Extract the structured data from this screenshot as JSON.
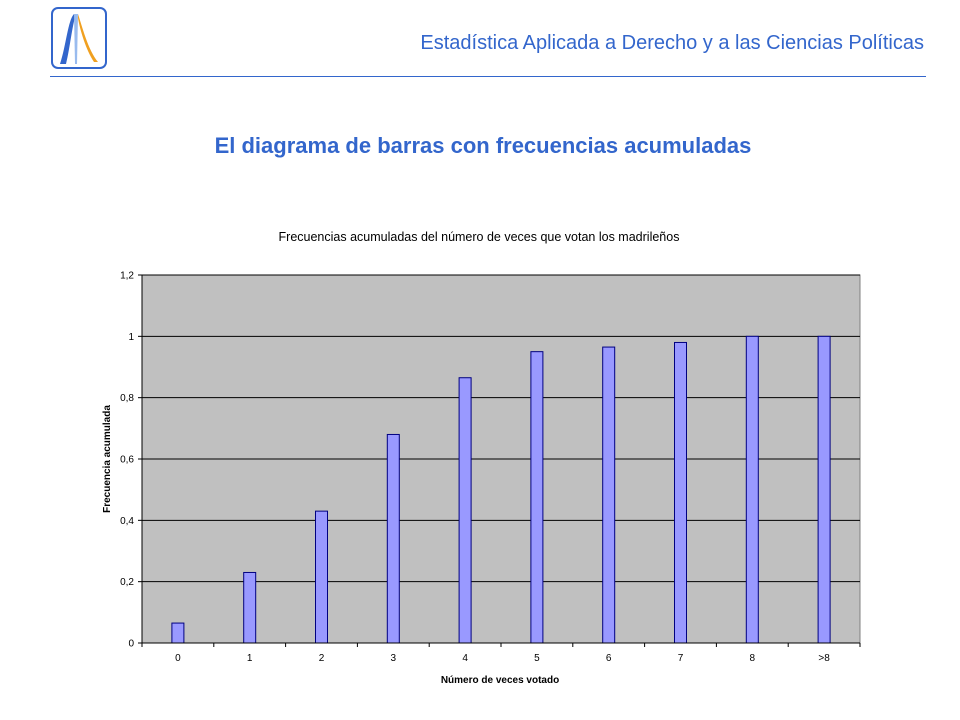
{
  "header": {
    "title": "Estadística Aplicada a Derecho y a las Ciencias Políticas"
  },
  "slide": {
    "title": "El diagrama de barras con frecuencias acumuladas"
  },
  "colors": {
    "accent": "#3366cc",
    "plot_bg": "#c0c0c0",
    "bar_fill": "#9999ff",
    "bar_stroke": "#000080"
  },
  "chart_data": {
    "type": "bar",
    "title": "Frecuencias acumuladas del número de veces que votan los madrileños",
    "xlabel": "Número de veces votado",
    "ylabel": "Frecuencia acumulada",
    "categories": [
      "0",
      "1",
      "2",
      "3",
      "4",
      "5",
      "6",
      "7",
      "8",
      ">8"
    ],
    "values": [
      0.065,
      0.23,
      0.43,
      0.68,
      0.865,
      0.95,
      0.965,
      0.98,
      1.0,
      1.0
    ],
    "ylim": [
      0,
      1.2
    ],
    "yticks": [
      0,
      0.2,
      0.4,
      0.6,
      0.8,
      1,
      1.2
    ],
    "ytick_labels": [
      "0",
      "0,2",
      "0,4",
      "0,6",
      "0,8",
      "1",
      "1,2"
    ],
    "grid": true,
    "legend": "none"
  }
}
